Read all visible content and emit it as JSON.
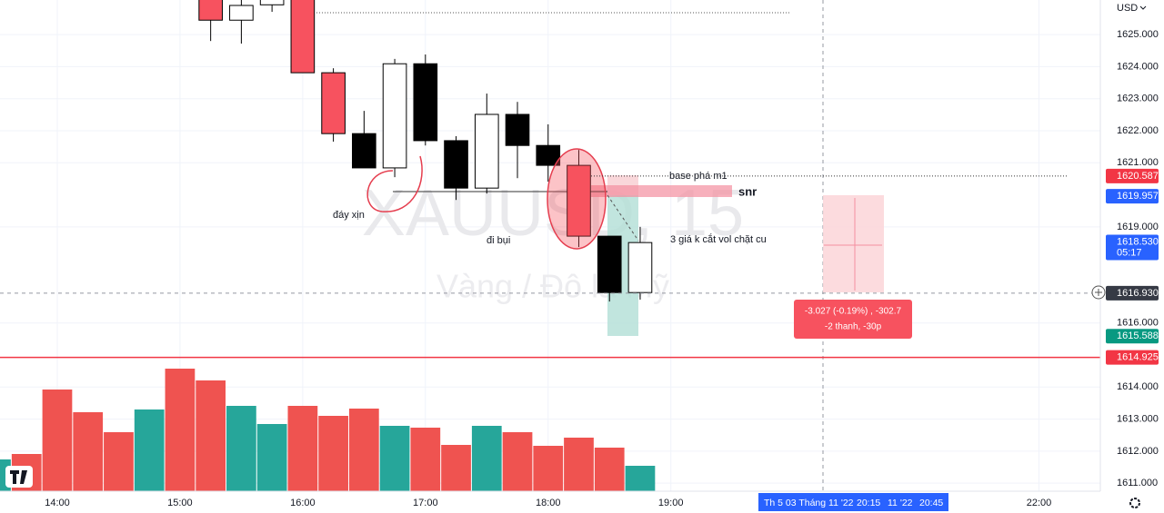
{
  "chart_data": {
    "type": "candlestick",
    "currency": "USD",
    "watermark": {
      "symbol": "XAUUSD, 15",
      "description": "Vàng / Đô la Mỹ"
    },
    "xlim": [
      "13:32",
      "22:30"
    ],
    "xticks": [
      "14:00",
      "15:00",
      "16:00",
      "17:00",
      "18:00",
      "19:00",
      "22:00"
    ],
    "ylim": [
      1610.07,
      1626.08
    ],
    "yticks": [
      {
        "value": 1611,
        "label": "1611.000"
      },
      {
        "value": 1612,
        "label": "1612.000"
      },
      {
        "value": 1613,
        "label": "1613.000"
      },
      {
        "value": 1614,
        "label": "1614.000"
      },
      {
        "value": 1616,
        "label": "1616.000"
      },
      {
        "value": 1619,
        "label": "1619.000"
      },
      {
        "value": 1621,
        "label": "1621.000"
      },
      {
        "value": 1622,
        "label": "1622.000"
      },
      {
        "value": 1623,
        "label": "1623.000"
      },
      {
        "value": 1624,
        "label": "1624.000"
      },
      {
        "value": 1625,
        "label": "1625.000"
      }
    ],
    "candles": {
      "x": [
        "15:15",
        "15:30",
        "15:45",
        "16:00",
        "16:15",
        "16:30",
        "16:45",
        "17:00",
        "17:15",
        "17:30",
        "17:45",
        "18:00",
        "18:15",
        "18:30",
        "18:45"
      ],
      "open": [
        1626.2,
        1625.45,
        1625.93,
        1626.3,
        1623.81,
        1621.91,
        1620.84,
        1624.09,
        1621.69,
        1620.21,
        1622.51,
        1621.54,
        1620.92,
        1618.71,
        1616.95
      ],
      "high": [
        1626.6,
        1626.3,
        1626.3,
        1626.5,
        1623.95,
        1622.62,
        1624.24,
        1624.38,
        1621.83,
        1623.16,
        1622.9,
        1622.2,
        1621.4,
        1618.71,
        1619.0
      ],
      "low": [
        1624.8,
        1624.72,
        1625.71,
        1623.8,
        1621.66,
        1620.84,
        1620.55,
        1621.54,
        1619.84,
        1620.04,
        1620.52,
        1620.41,
        1618.37,
        1616.67,
        1616.73
      ],
      "close": [
        1625.45,
        1625.91,
        1626.1,
        1623.81,
        1621.91,
        1620.84,
        1624.09,
        1621.69,
        1620.21,
        1622.51,
        1621.54,
        1620.92,
        1618.71,
        1616.95,
        1618.51
      ],
      "colors": [
        "#f7525f",
        "#ffffff",
        "#ffffff",
        "#f7525f",
        "#f7525f",
        "#000000",
        "#ffffff",
        "#000000",
        "#000000",
        "#ffffff",
        "#000000",
        "#000000",
        "#f7525f",
        "#000000",
        "#ffffff"
      ]
    },
    "volume": {
      "vlim": [
        0,
        150
      ],
      "x": [
        "13:30",
        "13:45",
        "14:00",
        "14:15",
        "14:30",
        "14:45",
        "15:00",
        "15:15",
        "15:30",
        "15:45",
        "16:00",
        "16:15",
        "16:30",
        "16:45",
        "17:00",
        "17:15",
        "17:30",
        "17:45",
        "18:00",
        "18:15",
        "18:30",
        "18:45"
      ],
      "values": [
        35,
        41,
        112,
        87,
        65,
        90,
        135,
        122,
        94,
        74,
        94,
        83,
        91,
        72,
        70,
        51,
        72,
        65,
        50,
        59,
        48,
        28
      ],
      "colors": [
        "#26a69a",
        "#ef5350",
        "#ef5350",
        "#ef5350",
        "#ef5350",
        "#26a69a",
        "#ef5350",
        "#ef5350",
        "#26a69a",
        "#26a69a",
        "#ef5350",
        "#ef5350",
        "#ef5350",
        "#26a69a",
        "#ef5350",
        "#ef5350",
        "#26a69a",
        "#ef5350",
        "#ef5350",
        "#ef5350",
        "#ef5350",
        "#26a69a"
      ]
    },
    "price_labels": [
      {
        "value": 1620.587,
        "label": "1620.587",
        "color": "#f23645"
      },
      {
        "value": 1619.957,
        "label": "1619.957",
        "color": "#2962ff"
      },
      {
        "value": 1618.53,
        "label": "1618.530",
        "color": "#2962ff",
        "countdown": "05:17"
      },
      {
        "value": 1616.93,
        "label": "1616.930",
        "color": "#363a45"
      },
      {
        "value": 1615.588,
        "label": "1615.588",
        "color": "#089981"
      },
      {
        "value": 1614.925,
        "label": "1614.925",
        "color": "#f23645"
      }
    ],
    "time_labels": [
      "Th 5 03 Tháng 11 '22",
      "20:15",
      "11 '22",
      "20:45"
    ],
    "annotations": [
      "đáy xịn",
      "đi bụi",
      "base phá m1",
      "snr",
      "3 giá k cắt vol chặt cu"
    ],
    "measure": [
      "-3.027 (-0.19%) , -302.7",
      "-2 thanh, -30p"
    ]
  }
}
